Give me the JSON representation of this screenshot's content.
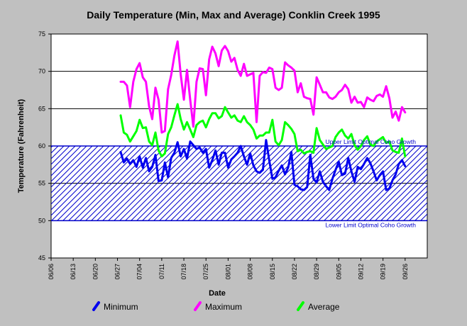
{
  "colors": {
    "background": "#c0c0c0",
    "plot_area": "#ffffff",
    "minimum": "#0000ee",
    "maximum": "#ff00ff",
    "average": "#00ff00",
    "band": "#0000cc",
    "text": "#000000"
  },
  "chart_data": {
    "type": "line",
    "title": "Daily Temperature (Min, Max and Average) Conklin Creek 1995",
    "xlabel": "Date",
    "ylabel": "Temperature (Fahrenheit)",
    "ylim": [
      45,
      75
    ],
    "yticks": [
      45,
      50,
      55,
      60,
      65,
      70,
      75
    ],
    "x_range": [
      "06/06",
      "10/03"
    ],
    "xticks": [
      "06/06",
      "06/13",
      "06/20",
      "06/27",
      "07/04",
      "07/11",
      "07/18",
      "07/25",
      "08/01",
      "08/08",
      "08/15",
      "08/22",
      "08/29",
      "09/05",
      "09/12",
      "09/19",
      "09/26"
    ],
    "grid": "horizontal",
    "legend_position": "bottom",
    "dates": [
      "06/28",
      "06/29",
      "06/30",
      "07/01",
      "07/02",
      "07/03",
      "07/04",
      "07/05",
      "07/06",
      "07/07",
      "07/08",
      "07/09",
      "07/10",
      "07/11",
      "07/12",
      "07/13",
      "07/14",
      "07/15",
      "07/16",
      "07/17",
      "07/18",
      "07/19",
      "07/20",
      "07/21",
      "07/22",
      "07/23",
      "07/24",
      "07/25",
      "07/26",
      "07/27",
      "07/28",
      "07/29",
      "07/30",
      "07/31",
      "08/01",
      "08/02",
      "08/03",
      "08/04",
      "08/05",
      "08/06",
      "08/07",
      "08/08",
      "08/09",
      "08/10",
      "08/11",
      "08/12",
      "08/13",
      "08/14",
      "08/15",
      "08/16",
      "08/17",
      "08/18",
      "08/19",
      "08/20",
      "08/21",
      "08/22",
      "08/23",
      "08/24",
      "08/25",
      "08/26",
      "08/27",
      "08/28",
      "08/29",
      "08/30",
      "08/31",
      "09/01",
      "09/02",
      "09/03",
      "09/04",
      "09/05",
      "09/06",
      "09/07",
      "09/08",
      "09/09",
      "09/10",
      "09/11",
      "09/12",
      "09/13",
      "09/14",
      "09/15",
      "09/16",
      "09/17",
      "09/18",
      "09/19",
      "09/20",
      "09/21",
      "09/22",
      "09/23",
      "09/24",
      "09/25",
      "09/26"
    ],
    "series": [
      {
        "name": "Minimum",
        "color": "#0000ee",
        "values": [
          59.2,
          57.8,
          58.3,
          57.6,
          58.1,
          57.2,
          58.6,
          57.1,
          58.4,
          56.6,
          57.2,
          58.8,
          55.3,
          55.4,
          57.8,
          55.8,
          58.4,
          59.1,
          60.5,
          58.6,
          59.6,
          58.3,
          60.6,
          60.1,
          59.6,
          59.8,
          59.1,
          59.6,
          57.1,
          58.1,
          59.4,
          57.5,
          59.1,
          59.1,
          57.1,
          58.2,
          58.6,
          59.1,
          60.0,
          58.6,
          57.5,
          59.0,
          57.4,
          56.6,
          56.4,
          56.8,
          60.8,
          58.1,
          55.6,
          55.8,
          56.7,
          57.4,
          56.2,
          57.1,
          59.2,
          54.8,
          54.6,
          54.2,
          54.1,
          54.5,
          58.8,
          55.6,
          55.1,
          56.6,
          55.2,
          54.6,
          54.1,
          55.6,
          56.8,
          57.9,
          56.1,
          56.3,
          58.4,
          56.6,
          55.2,
          57.2,
          56.9,
          57.6,
          58.4,
          57.7,
          56.6,
          55.4,
          56.1,
          56.6,
          54.1,
          54.3,
          55.4,
          56.2,
          57.6,
          58.1,
          57.3
        ]
      },
      {
        "name": "Maximum",
        "color": "#ff00ff",
        "values": [
          68.6,
          68.6,
          68.1,
          65.2,
          68.6,
          70.3,
          71.1,
          69.2,
          68.6,
          65.3,
          63.6,
          67.8,
          66.2,
          61.8,
          62.0,
          67.6,
          69.5,
          72.1,
          74.0,
          69.6,
          66.2,
          70.2,
          66.2,
          62.6,
          68.6,
          70.4,
          70.3,
          66.8,
          71.6,
          73.3,
          72.4,
          70.7,
          72.8,
          73.4,
          72.7,
          71.3,
          71.8,
          70.2,
          69.4,
          71.0,
          69.4,
          69.6,
          69.8,
          63.2,
          69.4,
          69.9,
          69.8,
          70.5,
          70.3,
          67.8,
          67.5,
          67.8,
          71.2,
          70.8,
          70.5,
          70.1,
          67.2,
          68.4,
          66.6,
          66.4,
          66.3,
          64.2,
          69.2,
          68.2,
          67.2,
          67.2,
          66.5,
          66.3,
          66.6,
          67.2,
          67.5,
          68.2,
          67.6,
          65.8,
          66.6,
          65.8,
          65.9,
          65.2,
          66.5,
          66.2,
          66.0,
          66.7,
          66.9,
          66.6,
          68.0,
          66.4,
          63.8,
          64.6,
          63.4,
          65.2,
          64.5
        ]
      },
      {
        "name": "Average",
        "color": "#00ff00",
        "values": [
          64.1,
          61.8,
          61.5,
          60.6,
          61.3,
          62.0,
          63.5,
          62.4,
          62.5,
          60.6,
          60.1,
          61.8,
          59.4,
          58.6,
          59.0,
          61.6,
          62.5,
          64.1,
          65.6,
          63.6,
          62.2,
          63.2,
          62.2,
          61.2,
          62.8,
          63.2,
          63.4,
          62.5,
          63.6,
          64.4,
          64.4,
          63.7,
          64.0,
          65.2,
          64.5,
          63.8,
          64.1,
          63.4,
          63.2,
          64.0,
          63.2,
          62.8,
          62.2,
          61.0,
          61.4,
          61.4,
          61.8,
          61.8,
          63.5,
          60.6,
          60.1,
          60.8,
          63.2,
          62.8,
          62.3,
          61.6,
          59.3,
          59.5,
          59.0,
          59.2,
          59.3,
          59.1,
          62.4,
          60.8,
          60.2,
          59.6,
          59.8,
          60.0,
          61.2,
          61.8,
          62.2,
          61.4,
          61.0,
          61.6,
          60.1,
          59.5,
          60.0,
          60.8,
          61.3,
          60.2,
          60.0,
          60.6,
          60.9,
          61.2,
          60.4,
          60.6,
          59.4,
          59.2,
          59.1,
          61.0,
          58.6
        ]
      }
    ],
    "annotations": [
      {
        "text": "Upper Limit Optimal Coho Growth",
        "y": 60
      },
      {
        "text": "Lower Limit Optimal Coho Growth",
        "y": 50
      }
    ],
    "band": {
      "from": 50,
      "to": 60,
      "pattern": "diagonal-hatch"
    }
  }
}
